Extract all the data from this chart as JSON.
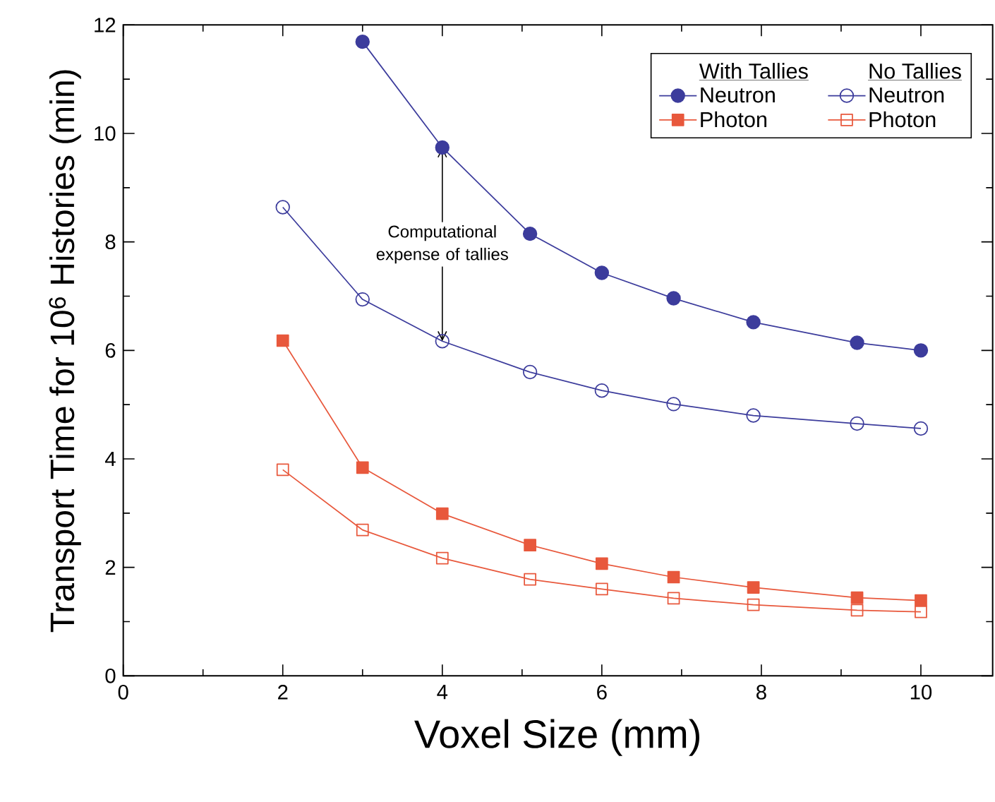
{
  "chart_data": {
    "type": "line",
    "xlabel": "Voxel Size  (mm)",
    "ylabel": "Transport Time for 10$^{6}$ Histories (min)",
    "x": [
      2,
      3,
      4,
      5.1,
      6,
      6.9,
      7.9,
      9.2,
      10
    ],
    "xlim": [
      0,
      10.9
    ],
    "ylim": [
      0,
      12
    ],
    "xticks": [
      0,
      2,
      4,
      6,
      8,
      10
    ],
    "yticks": [
      0,
      2,
      4,
      6,
      8,
      10,
      12
    ],
    "grid": false,
    "legend": "top right",
    "annotations": [
      "With Tallies",
      "No Tallies",
      {
        "text": "Computational expense of tallies",
        "x": 4,
        "y": 9.74
      }
    ],
    "series": [
      {
        "name": "Neutron",
        "color": "#3c3c9c",
        "marker": "circle",
        "values": [
          null,
          11.69,
          9.74,
          8.15,
          7.43,
          6.96,
          6.52,
          6.14,
          6.0
        ]
      },
      {
        "name": "Neutron",
        "color": "#3c3c9c",
        "marker": "circle",
        "values": [
          8.64,
          6.94,
          6.17,
          5.6,
          5.26,
          5.01,
          4.8,
          4.65,
          4.56
        ]
      },
      {
        "name": "Photon",
        "color": "#e8583c",
        "marker": "square",
        "values": [
          6.18,
          3.84,
          2.99,
          2.41,
          2.07,
          1.82,
          1.63,
          1.44,
          1.39
        ]
      },
      {
        "name": "Photon",
        "color": "#e8583c",
        "marker": "square",
        "values": [
          3.8,
          2.69,
          2.17,
          1.78,
          1.6,
          1.43,
          1.31,
          1.21,
          1.18
        ]
      }
    ]
  }
}
